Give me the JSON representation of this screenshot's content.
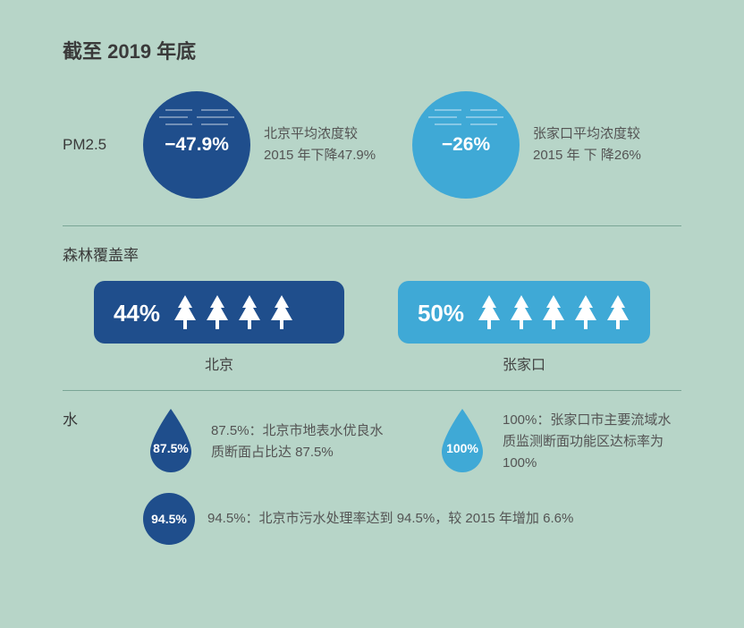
{
  "title": "截至 2019 年底",
  "colors": {
    "dark_blue": "#1f4e8c",
    "light_blue": "#3fa9d6",
    "background": "#b7d5c8",
    "text": "#3a3a3a",
    "desc": "#545454",
    "divider": "#7aa596"
  },
  "pm25": {
    "label": "PM2.5",
    "items": [
      {
        "value": "−47.9%",
        "color": "dark",
        "desc": "北京平均浓度较 2015 年下降47.9%"
      },
      {
        "value": "−26%",
        "color": "light",
        "desc": "张家口平均浓度较 2015 年 下 降26%"
      }
    ]
  },
  "forest": {
    "label": "森林覆盖率",
    "items": [
      {
        "value": "44%",
        "city": "北京",
        "color": "dark",
        "trees": 4
      },
      {
        "value": "50%",
        "city": "张家口",
        "color": "light",
        "trees": 5
      }
    ]
  },
  "water": {
    "label": "水",
    "drops": [
      {
        "value": "87.5%",
        "color": "dark",
        "desc": "87.5%：北京市地表水优良水质断面占比达 87.5%"
      },
      {
        "value": "100%",
        "color": "light",
        "desc": "100%：张家口市主要流域水质监测断面功能区达标率为 100%"
      }
    ],
    "circle": {
      "value": "94.5%",
      "desc": "94.5%：北京市污水处理率达到 94.5%，较 2015 年增加 6.6%"
    }
  }
}
